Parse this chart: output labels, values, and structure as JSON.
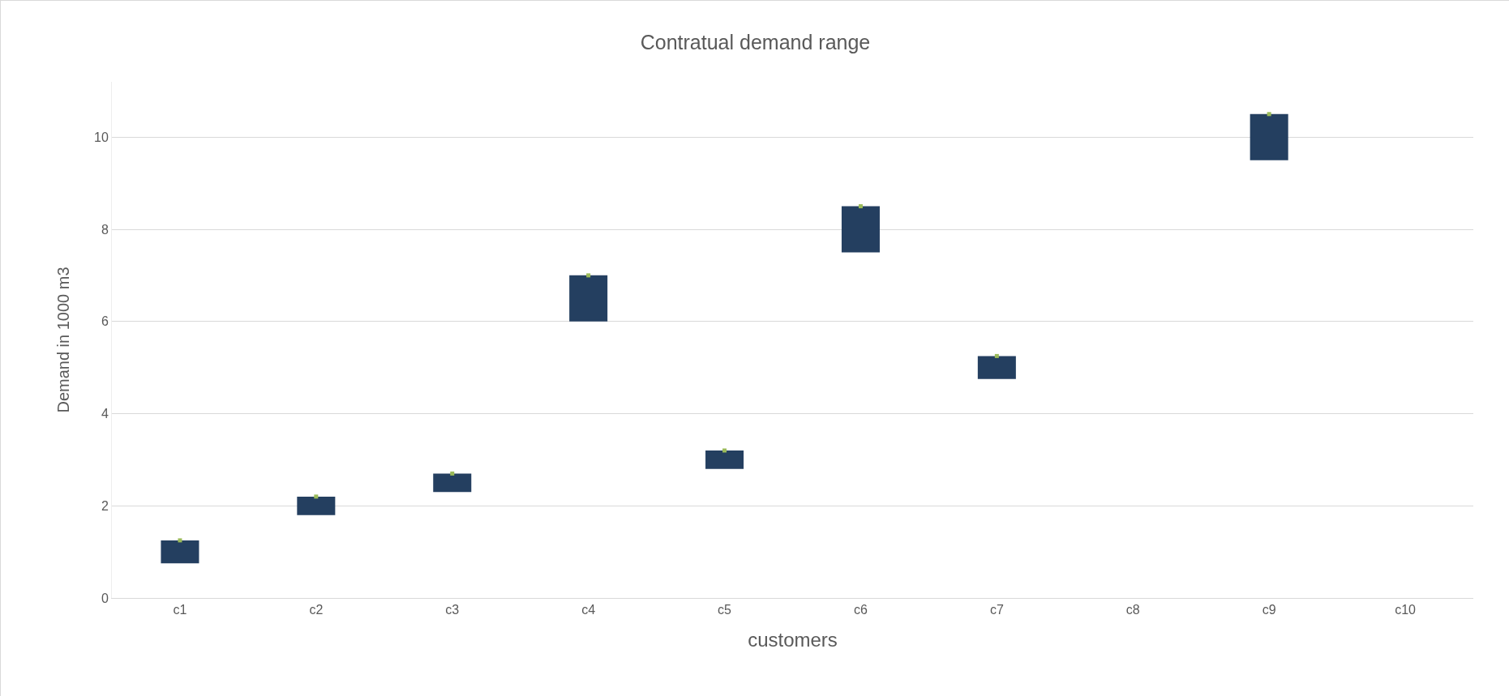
{
  "chart_data": {
    "type": "bar",
    "title": "Contratual demand range",
    "xlabel": "customers",
    "ylabel": "Demand in 1000 m3",
    "categories": [
      "c1",
      "c2",
      "c3",
      "c4",
      "c5",
      "c6",
      "c7",
      "c8",
      "c9",
      "c10"
    ],
    "series": [
      {
        "color": "#243f60",
        "values": [
          0.5,
          0.4,
          0.4,
          1,
          0.4,
          1,
          0.5,
          null,
          1,
          null
        ],
        "base": [
          0.75,
          1.8,
          2.3,
          6,
          2.8,
          7.5,
          4.75,
          null,
          9.5,
          null
        ]
      },
      {
        "type": "scatter",
        "marker": "square",
        "color": "#9bbb59",
        "values": [
          1.25,
          2.2,
          2.7,
          7,
          3.2,
          8.5,
          5.25,
          null,
          10.5,
          null
        ]
      }
    ],
    "ylim": [
      0,
      11.2
    ],
    "yticks": [
      0,
      2,
      4,
      6,
      8,
      10
    ],
    "grid": "y"
  }
}
